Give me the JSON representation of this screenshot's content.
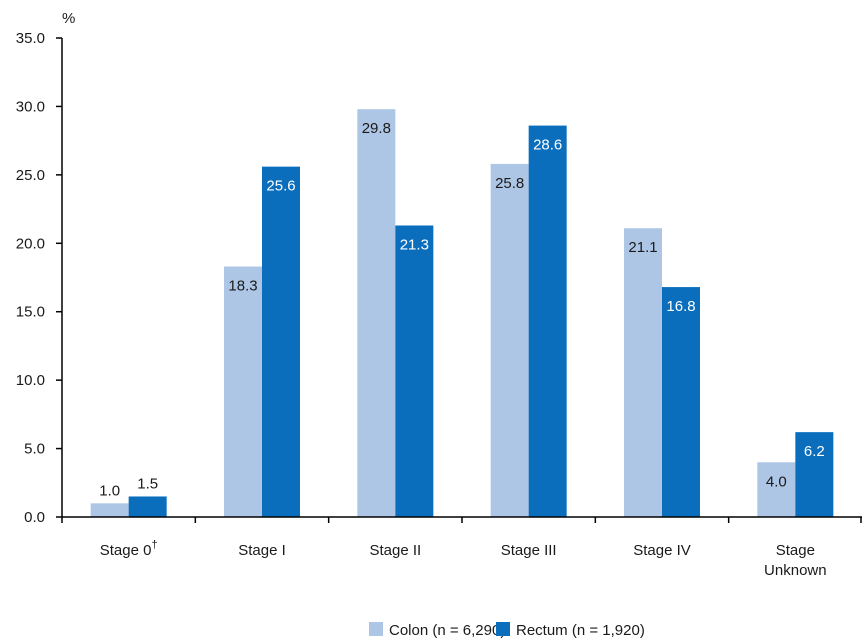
{
  "chart_data": {
    "type": "bar",
    "ylabel": "%",
    "ylim": [
      0,
      35
    ],
    "yticks": [
      "0.0",
      "5.0",
      "10.0",
      "15.0",
      "20.0",
      "25.0",
      "30.0",
      "35.0"
    ],
    "categories": [
      "Stage 0",
      "Stage I",
      "Stage II",
      "Stage III",
      "Stage IV",
      "Stage Unknown"
    ],
    "category_lines": [
      [
        "Stage 0"
      ],
      [
        "Stage I"
      ],
      [
        "Stage II"
      ],
      [
        "Stage III"
      ],
      [
        "Stage IV"
      ],
      [
        "Stage",
        "Unknown"
      ]
    ],
    "category_superscripts": [
      "†",
      "",
      "",
      "",
      "",
      ""
    ],
    "series": [
      {
        "name": "Colon (n = 6,290)",
        "color": "#aec6e6",
        "label_color": "#1a1a1a",
        "values": [
          1.0,
          18.3,
          29.8,
          25.8,
          21.1,
          4.0
        ],
        "labels": [
          "1.0",
          "18.3",
          "29.8",
          "25.8",
          "21.1",
          "4.0"
        ]
      },
      {
        "name": "Rectum (n = 1,920)",
        "color": "#0a6ebd",
        "label_color": "#ffffff",
        "values": [
          1.5,
          25.6,
          21.3,
          28.6,
          16.8,
          6.2
        ],
        "labels": [
          "1.5",
          "25.6",
          "21.3",
          "28.6",
          "16.8",
          "6.2"
        ]
      }
    ],
    "grid": false,
    "legend_position": "bottom-center"
  }
}
